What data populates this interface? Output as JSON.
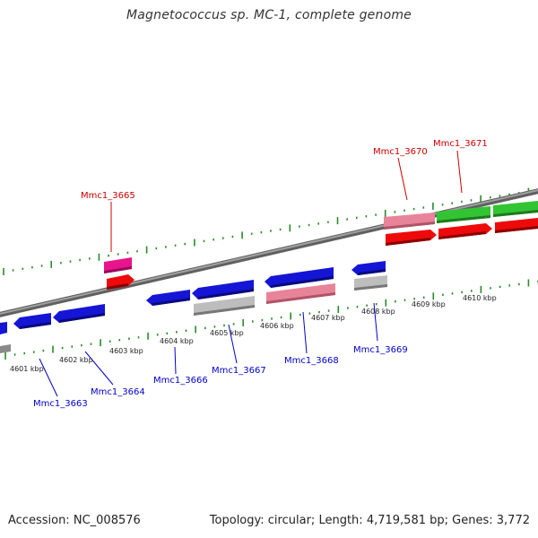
{
  "title": "Magnetococcus sp. MC-1, complete genome",
  "footer": {
    "accession_prefix": "Accession:",
    "accession": "NC_008576",
    "topology_label": "Topology:",
    "topology": "circular",
    "length_label": "Length:",
    "length": "4,719,581 bp",
    "genes_label": "Genes:",
    "genes": "3,772"
  },
  "ruler_ticks": [
    {
      "label": "4601 kbp"
    },
    {
      "label": "4602 kbp"
    },
    {
      "label": "4603 kbp"
    },
    {
      "label": "4604 kbp"
    },
    {
      "label": "4605 kbp"
    },
    {
      "label": "4606 kbp"
    },
    {
      "label": "4607 kbp"
    },
    {
      "label": "4608 kbp"
    },
    {
      "label": "4609 kbp"
    },
    {
      "label": "4610 kbp"
    }
  ],
  "gene_labels": {
    "forward": [
      "Mmc1_3665",
      "Mmc1_3670",
      "Mmc1_3671"
    ],
    "reverse": [
      "Mmc1_3663",
      "Mmc1_3664",
      "Mmc1_3666",
      "Mmc1_3667",
      "Mmc1_3668",
      "Mmc1_3669"
    ]
  },
  "colors": {
    "forward_label": "#cc0000",
    "reverse_label": "#0000cc",
    "blue_gene": "#1515d6",
    "red_gene": "#ee0a0a",
    "pink_gene": "#e8849a",
    "magenta_gene": "#e8148c",
    "green_gene": "#33c433",
    "gray_gene": "#bdbdbd",
    "backbone": "#7a7a7a",
    "tick_green": "#2a8a2a"
  }
}
